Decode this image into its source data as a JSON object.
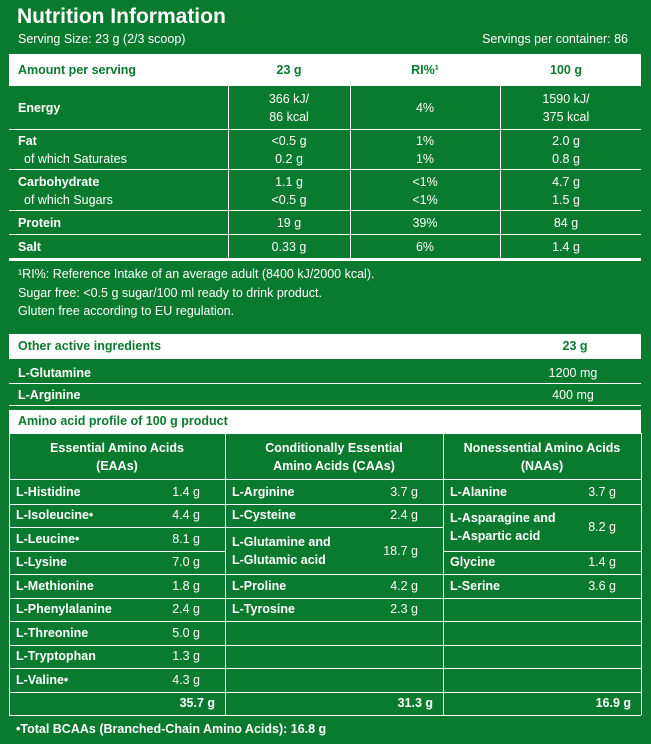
{
  "title": "Nutrition Information",
  "serving_size": "Serving Size: 23 g (2/3 scoop)",
  "servings_per_container": "Servings per container: 86",
  "nutrition_table": {
    "header": [
      "Amount per serving",
      "23 g",
      "RI%¹",
      "100 g"
    ],
    "rows": [
      [
        "Energy",
        "366 kJ/\n86 kcal",
        "4%",
        "1590 kJ/\n375 kcal"
      ],
      [
        "Fat",
        "<0.5 g",
        "1%",
        "2.0 g"
      ],
      [
        "of which Saturates",
        "0.2 g",
        "1%",
        "0.8 g"
      ],
      [
        "Carbohydrate",
        "1.1 g",
        "<1%",
        "4.7 g"
      ],
      [
        "of which Sugars",
        "<0.5 g",
        "<1%",
        "1.5 g"
      ],
      [
        "Protein",
        "19 g",
        "39%",
        "84 g"
      ],
      [
        "Salt",
        "0.33 g",
        "6%",
        "1.4 g"
      ]
    ]
  },
  "footnotes": [
    "¹RI%: Reference Intake of an average adult (8400 kJ/2000 kcal).",
    "Sugar free: <0.5 g sugar/100 ml ready to drink product.",
    "Gluten free according to EU regulation."
  ],
  "other_ingredients": {
    "header": [
      "Other active ingredients",
      "23 g"
    ],
    "rows": [
      [
        "L-Glutamine",
        "1200 mg"
      ],
      [
        "L-Arginine",
        "400 mg"
      ]
    ]
  },
  "amino_profile": {
    "title": "Amino acid profile of 100 g product",
    "columns": [
      {
        "heading": "Essential Amino Acids\n(EAAs)",
        "items": [
          [
            "L-Histidine",
            "1.4 g"
          ],
          [
            "L-Isoleucine•",
            "4.4 g"
          ],
          [
            "L-Leucine•",
            "8.1 g"
          ],
          [
            "L-Lysine",
            "7.0 g"
          ],
          [
            "L-Methionine",
            "1.8 g"
          ],
          [
            "L-Phenylalanine",
            "2.4 g"
          ],
          [
            "L-Threonine",
            "5.0 g"
          ],
          [
            "L-Tryptophan",
            "1.3 g"
          ],
          [
            "L-Valine•",
            "4.3 g"
          ]
        ],
        "total": "35.7 g"
      },
      {
        "heading": "Conditionally Essential\nAmino Acids (CAAs)",
        "items": [
          [
            "L-Arginine",
            "3.7 g"
          ],
          [
            "L-Cysteine",
            "2.4 g"
          ],
          [
            "L-Glutamine and\nL-Glutamic acid",
            "18.7 g"
          ],
          [
            "L-Proline",
            "4.2 g"
          ],
          [
            "L-Tyrosine",
            "2.3 g"
          ]
        ],
        "total": "31.3 g"
      },
      {
        "heading": "Nonessential Amino Acids\n(NAAs)",
        "items": [
          [
            "L-Alanine",
            "3.7 g"
          ],
          [
            "L-Asparagine and\nL-Aspartic acid",
            "8.2 g"
          ],
          [
            "Glycine",
            "1.4 g"
          ],
          [
            "L-Serine",
            "3.6 g"
          ]
        ],
        "total": "16.9 g"
      }
    ]
  },
  "bcaa_note": "•Total BCAAs (Branched-Chain Amino Acids): 16.8 g"
}
